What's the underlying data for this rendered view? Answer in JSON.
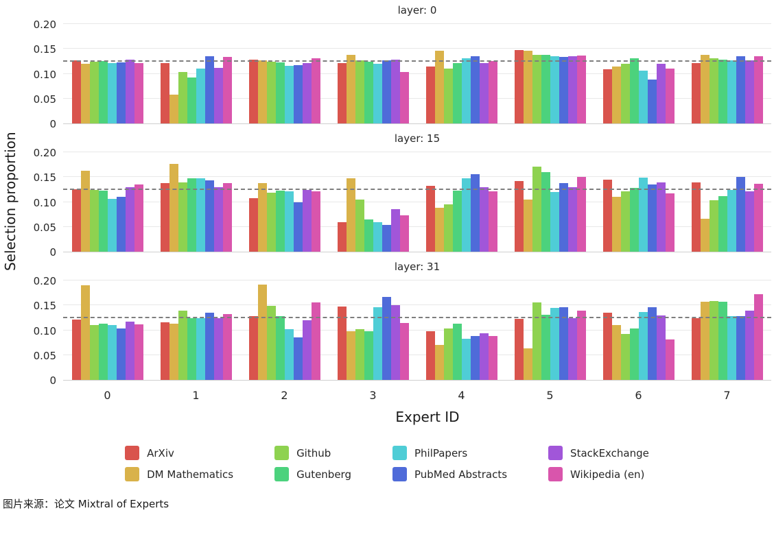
{
  "caption": "图片来源：论文 Mixtral of Experts",
  "chart_data": {
    "type": "bar",
    "title": "",
    "xlabel": "Expert ID",
    "ylabel": "Selection proportion",
    "categories": [
      "0",
      "1",
      "2",
      "3",
      "4",
      "5",
      "6",
      "7"
    ],
    "yticks": [
      0,
      0.05,
      0.1,
      0.15,
      0.2
    ],
    "ytick_labels": [
      "0",
      "0.05",
      "0.10",
      "0.15",
      "0.20"
    ],
    "ylim": [
      0,
      0.21
    ],
    "reference_line": 0.125,
    "grid": true,
    "legend_position": "bottom",
    "legend_order": [
      0,
      2,
      4,
      6,
      1,
      3,
      5,
      7
    ],
    "series_names": [
      "ArXiv",
      "DM Mathematics",
      "Github",
      "Gutenberg",
      "PhilPapers",
      "PubMed Abstracts",
      "StackExchange",
      "Wikipedia (en)"
    ],
    "series_colors": [
      "#d9544d",
      "#d9b24a",
      "#8ed250",
      "#4cd27d",
      "#4fcdd6",
      "#4f6bd9",
      "#a156d9",
      "#d955ac"
    ],
    "subplots": [
      {
        "title": "layer: 0",
        "series": [
          {
            "name": "ArXiv",
            "values": [
              0.127,
              0.122,
              0.128,
              0.122,
              0.115,
              0.148,
              0.109,
              0.122
            ]
          },
          {
            "name": "DM Mathematics",
            "values": [
              0.12,
              0.058,
              0.127,
              0.138,
              0.147,
              0.146,
              0.115,
              0.138
            ]
          },
          {
            "name": "Github",
            "values": [
              0.125,
              0.104,
              0.125,
              0.127,
              0.111,
              0.138,
              0.12,
              0.131
            ]
          },
          {
            "name": "Gutenberg",
            "values": [
              0.126,
              0.093,
              0.123,
              0.124,
              0.121,
              0.138,
              0.131,
              0.129
            ]
          },
          {
            "name": "PhilPapers",
            "values": [
              0.121,
              0.11,
              0.116,
              0.12,
              0.131,
              0.135,
              0.106,
              0.127
            ]
          },
          {
            "name": "PubMed Abstracts",
            "values": [
              0.123,
              0.135,
              0.117,
              0.127,
              0.136,
              0.134,
              0.088,
              0.136
            ]
          },
          {
            "name": "StackExchange",
            "values": [
              0.128,
              0.112,
              0.122,
              0.128,
              0.122,
              0.135,
              0.12,
              0.127
            ]
          },
          {
            "name": "Wikipedia (en)",
            "values": [
              0.121,
              0.134,
              0.131,
              0.103,
              0.126,
              0.137,
              0.111,
              0.135
            ]
          }
        ]
      },
      {
        "title": "layer: 15",
        "series": [
          {
            "name": "ArXiv",
            "values": [
              0.126,
              0.138,
              0.108,
              0.06,
              0.133,
              0.143,
              0.145,
              0.139
            ]
          },
          {
            "name": "DM Mathematics",
            "values": [
              0.163,
              0.177,
              0.138,
              0.148,
              0.088,
              0.105,
              0.11,
              0.066
            ]
          },
          {
            "name": "Github",
            "values": [
              0.124,
              0.14,
              0.119,
              0.105,
              0.095,
              0.172,
              0.122,
              0.104
            ]
          },
          {
            "name": "Gutenberg",
            "values": [
              0.123,
              0.148,
              0.123,
              0.065,
              0.123,
              0.16,
              0.129,
              0.112
            ]
          },
          {
            "name": "PhilPapers",
            "values": [
              0.106,
              0.148,
              0.122,
              0.06,
              0.148,
              0.12,
              0.149,
              0.125
            ]
          },
          {
            "name": "PubMed Abstracts",
            "values": [
              0.11,
              0.144,
              0.1,
              0.054,
              0.156,
              0.138,
              0.136,
              0.151
            ]
          },
          {
            "name": "StackExchange",
            "values": [
              0.13,
              0.13,
              0.125,
              0.085,
              0.13,
              0.13,
              0.14,
              0.122
            ]
          },
          {
            "name": "Wikipedia (en)",
            "values": [
              0.135,
              0.138,
              0.122,
              0.073,
              0.122,
              0.15,
              0.117,
              0.137
            ]
          }
        ]
      },
      {
        "title": "layer: 31",
        "series": [
          {
            "name": "ArXiv",
            "values": [
              0.121,
              0.116,
              0.128,
              0.148,
              0.098,
              0.123,
              0.135,
              0.125
            ]
          },
          {
            "name": "DM Mathematics",
            "values": [
              0.191,
              0.113,
              0.192,
              0.098,
              0.071,
              0.064,
              0.111,
              0.157
            ]
          },
          {
            "name": "Github",
            "values": [
              0.111,
              0.139,
              0.149,
              0.102,
              0.103,
              0.156,
              0.092,
              0.159
            ]
          },
          {
            "name": "Gutenberg",
            "values": [
              0.114,
              0.124,
              0.128,
              0.098,
              0.114,
              0.131,
              0.104,
              0.158
            ]
          },
          {
            "name": "PhilPapers",
            "values": [
              0.111,
              0.124,
              0.102,
              0.146,
              0.083,
              0.145,
              0.137,
              0.128
            ]
          },
          {
            "name": "PubMed Abstracts",
            "values": [
              0.103,
              0.135,
              0.085,
              0.167,
              0.089,
              0.147,
              0.146,
              0.129
            ]
          },
          {
            "name": "StackExchange",
            "values": [
              0.118,
              0.124,
              0.12,
              0.151,
              0.094,
              0.124,
              0.13,
              0.139
            ]
          },
          {
            "name": "Wikipedia (en)",
            "values": [
              0.112,
              0.133,
              0.156,
              0.115,
              0.088,
              0.139,
              0.081,
              0.173
            ]
          }
        ]
      }
    ]
  }
}
